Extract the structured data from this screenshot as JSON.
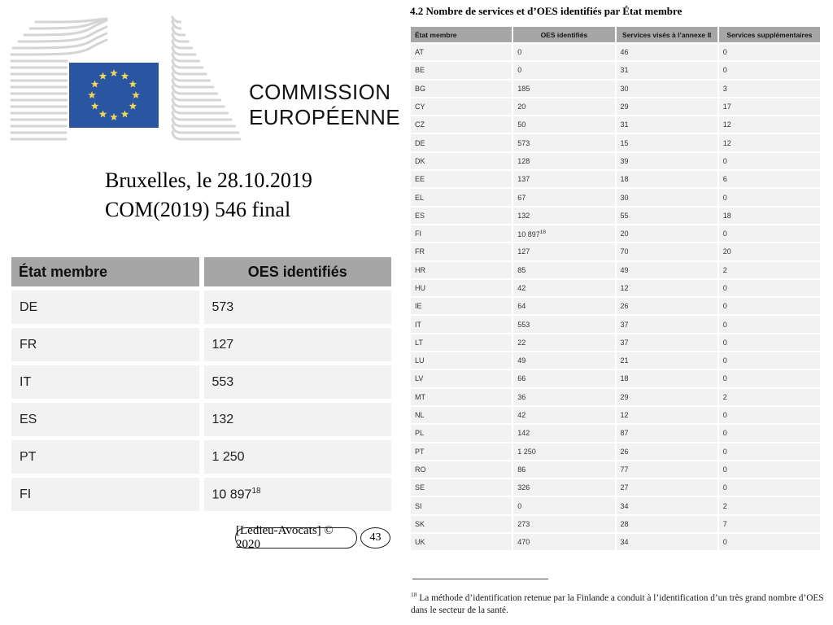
{
  "logo": {
    "line1": "COMMISSION",
    "line2": "EUROPÉENNE"
  },
  "date_block": {
    "line1": "Bruxelles, le 28.10.2019",
    "line2": "COM(2019) 546 final"
  },
  "left_table": {
    "headers": [
      "État membre",
      "OES identifiés"
    ],
    "rows": [
      [
        "DE",
        "573"
      ],
      [
        "FR",
        "127"
      ],
      [
        "IT",
        "553"
      ],
      [
        "ES",
        "132"
      ],
      [
        "PT",
        "1 250"
      ],
      [
        "FI",
        {
          "v": "10 897",
          "sup": "18"
        }
      ]
    ]
  },
  "footer": {
    "copyright": "[Ledieu-Avocats] © 2020",
    "page_number": "43"
  },
  "right_section": {
    "title": "4.2 Nombre de services et d’OES identifiés par État membre",
    "table": {
      "headers": [
        "État membre",
        "OES identifiés",
        "Services visés à l’annexe II",
        "Services supplémentaires"
      ],
      "rows": [
        [
          "AT",
          "0",
          "46",
          "0"
        ],
        [
          "BE",
          "0",
          "31",
          "0"
        ],
        [
          "BG",
          "185",
          "30",
          "3"
        ],
        [
          "CY",
          "20",
          "29",
          "17"
        ],
        [
          "CZ",
          "50",
          "31",
          "12"
        ],
        [
          "DE",
          "573",
          "15",
          "12"
        ],
        [
          "DK",
          "128",
          "39",
          "0"
        ],
        [
          "EE",
          "137",
          "18",
          "6"
        ],
        [
          "EL",
          "67",
          "30",
          "0"
        ],
        [
          "ES",
          "132",
          "55",
          "18"
        ],
        [
          "FI",
          {
            "v": "10 897",
            "sup": "18"
          },
          "20",
          "0"
        ],
        [
          "FR",
          "127",
          "70",
          "20"
        ],
        [
          "HR",
          "85",
          "49",
          "2"
        ],
        [
          "HU",
          "42",
          "12",
          "0"
        ],
        [
          "IE",
          "64",
          "26",
          "0"
        ],
        [
          "IT",
          "553",
          "37",
          "0"
        ],
        [
          "LT",
          "22",
          "37",
          "0"
        ],
        [
          "LU",
          "49",
          "21",
          "0"
        ],
        [
          "LV",
          "66",
          "18",
          "0"
        ],
        [
          "MT",
          "36",
          "29",
          "2"
        ],
        [
          "NL",
          "42",
          "12",
          "0"
        ],
        [
          "PL",
          "142",
          "87",
          "0"
        ],
        [
          "PT",
          "1 250",
          "26",
          "0"
        ],
        [
          "RO",
          "86",
          "77",
          "0"
        ],
        [
          "SE",
          "326",
          "27",
          "0"
        ],
        [
          "SI",
          "0",
          "34",
          "2"
        ],
        [
          "SK",
          "273",
          "28",
          "7"
        ],
        [
          "UK",
          "470",
          "34",
          "0"
        ]
      ]
    },
    "footnote_marker": "18",
    "footnote_text": "La méthode d’identification retenue par la Finlande a conduit à l’identification d’un très grand nombre d’OES dans le secteur de la santé."
  },
  "colors": {
    "table_header_bg": "#a6a6a6",
    "table_row_bg": "#f2f2f2",
    "eu_flag_blue": "#2a55a0",
    "eu_star_yellow": "#efd659",
    "logo_line_gray": "#d5d5d5"
  }
}
